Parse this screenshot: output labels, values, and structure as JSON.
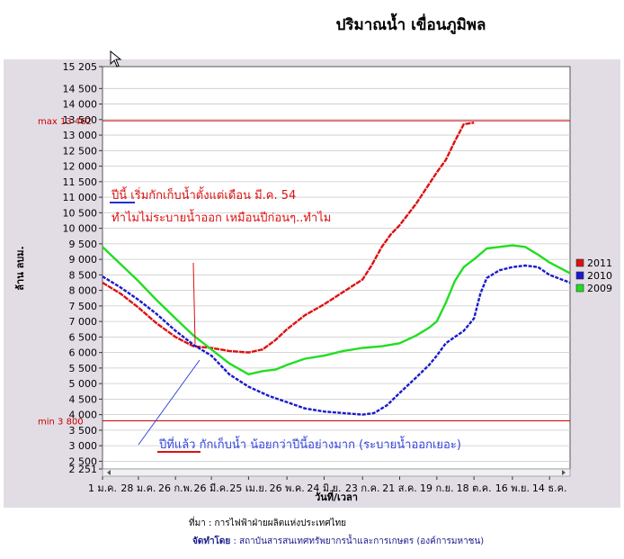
{
  "page_title": "ปริมาณน้ำ เขื่อนภูมิพล",
  "credits": {
    "source": "ที่มา : การไฟฟ้าฝ่ายผลิตแห่งประเทศไทย",
    "organized_by_label": "จัดทำโดย",
    "organized_by": " : สถาบันสารสนเทศทรัพยากรน้ำและการเกษตร (องค์การมหาชน)"
  },
  "chart_data": {
    "type": "line",
    "title": "ปริมาณน้ำ เขื่อนภูมิพล",
    "ylabel": "ล้าน ลบม.",
    "xlabel": "วันที่/เวลา",
    "ylim": [
      2251,
      15205
    ],
    "xlim": [
      0,
      365
    ],
    "grid": true,
    "legend_position": "right",
    "yticks": [
      2251,
      2500,
      3000,
      3500,
      4000,
      4500,
      5000,
      5500,
      6000,
      6500,
      7000,
      7500,
      8000,
      8500,
      9000,
      9500,
      10000,
      10500,
      11000,
      11500,
      12000,
      12500,
      13000,
      13500,
      14000,
      14500,
      15205
    ],
    "ytick_labels": [
      "2 251",
      "2 500",
      "3 000",
      "3 500",
      "4 000",
      "4 500",
      "5 000",
      "5 500",
      "6 000",
      "6 500",
      "7 000",
      "7 500",
      "8 000",
      "8 500",
      "9 000",
      "9 500",
      "10 000",
      "10 500",
      "11 000",
      "11 500",
      "12 000",
      "12 500",
      "13 000",
      "13 500",
      "14 000",
      "14 500",
      "15 205"
    ],
    "xticks": [
      0,
      28,
      57,
      85,
      114,
      144,
      173,
      203,
      232,
      261,
      290,
      320,
      349
    ],
    "xtick_labels": [
      "1 ม.ค.",
      "28 ม.ค.",
      "26 ก.พ.",
      "26 มี.ค.",
      "25 เม.ย.",
      "26 พ.ค.",
      "24 มิ.ย.",
      "23 ก.ค.",
      "21 ส.ค.",
      "19 ก.ย.",
      "18 ต.ค.",
      "16 พ.ย.",
      "14 ธ.ค."
    ],
    "reference_lines": [
      {
        "label": "max 13 462",
        "value": 13462,
        "color": "#cc0000"
      },
      {
        "label": "min 3 800",
        "value": 3800,
        "color": "#cc0000"
      }
    ],
    "series": [
      {
        "name": "2011",
        "color": "#dd1111",
        "x": [
          0,
          14,
          28,
          42,
          57,
          71,
          85,
          99,
          114,
          125,
          135,
          144,
          158,
          173,
          188,
          203,
          210,
          218,
          225,
          232,
          245,
          261,
          268,
          275,
          282,
          290
        ],
        "y": [
          8250,
          7900,
          7450,
          6950,
          6500,
          6200,
          6150,
          6050,
          6000,
          6100,
          6400,
          6750,
          7200,
          7550,
          7950,
          8350,
          8800,
          9400,
          9800,
          10100,
          10800,
          11800,
          12200,
          12800,
          13350,
          13400
        ]
      },
      {
        "name": "2010",
        "color": "#1a1acc",
        "x": [
          0,
          14,
          28,
          42,
          57,
          71,
          85,
          99,
          114,
          130,
          144,
          158,
          173,
          188,
          203,
          212,
          222,
          232,
          245,
          255,
          261,
          268,
          275,
          282,
          290,
          295,
          300,
          310,
          320,
          330,
          340,
          349,
          365
        ],
        "y": [
          8450,
          8100,
          7700,
          7250,
          6700,
          6250,
          5900,
          5300,
          4900,
          4600,
          4400,
          4200,
          4100,
          4050,
          4000,
          4050,
          4300,
          4700,
          5200,
          5600,
          5900,
          6300,
          6500,
          6700,
          7100,
          7900,
          8400,
          8650,
          8750,
          8800,
          8750,
          8500,
          8250
        ]
      },
      {
        "name": "2009",
        "color": "#22dd22",
        "x": [
          0,
          14,
          28,
          42,
          57,
          71,
          85,
          99,
          114,
          125,
          135,
          144,
          158,
          173,
          188,
          203,
          218,
          232,
          245,
          255,
          261,
          268,
          275,
          282,
          290,
          300,
          310,
          320,
          330,
          340,
          349,
          365
        ],
        "y": [
          9400,
          8850,
          8300,
          7700,
          7100,
          6550,
          6100,
          5650,
          5300,
          5400,
          5450,
          5600,
          5800,
          5900,
          6050,
          6150,
          6200,
          6300,
          6550,
          6800,
          7000,
          7600,
          8300,
          8750,
          9000,
          9350,
          9400,
          9450,
          9400,
          9150,
          8900,
          8550
        ]
      }
    ],
    "annotations": [
      {
        "text": "ปีนี้ เริ่มกักเก็บน้ำตั้งแต่เดือน มี.ค. 54",
        "color": "#dd1111"
      },
      {
        "text": "ทำไมไม่ระบายน้ำออก เหมือนปีก่อนๆ..ทำไม",
        "color": "#dd1111"
      },
      {
        "text": "ปีที่แล้ว กักเก็บน้ำ น้อยกว่าปีนี้อย่างมาก (ระบายน้ำออกเยอะ)",
        "color": "#3344dd"
      }
    ]
  }
}
